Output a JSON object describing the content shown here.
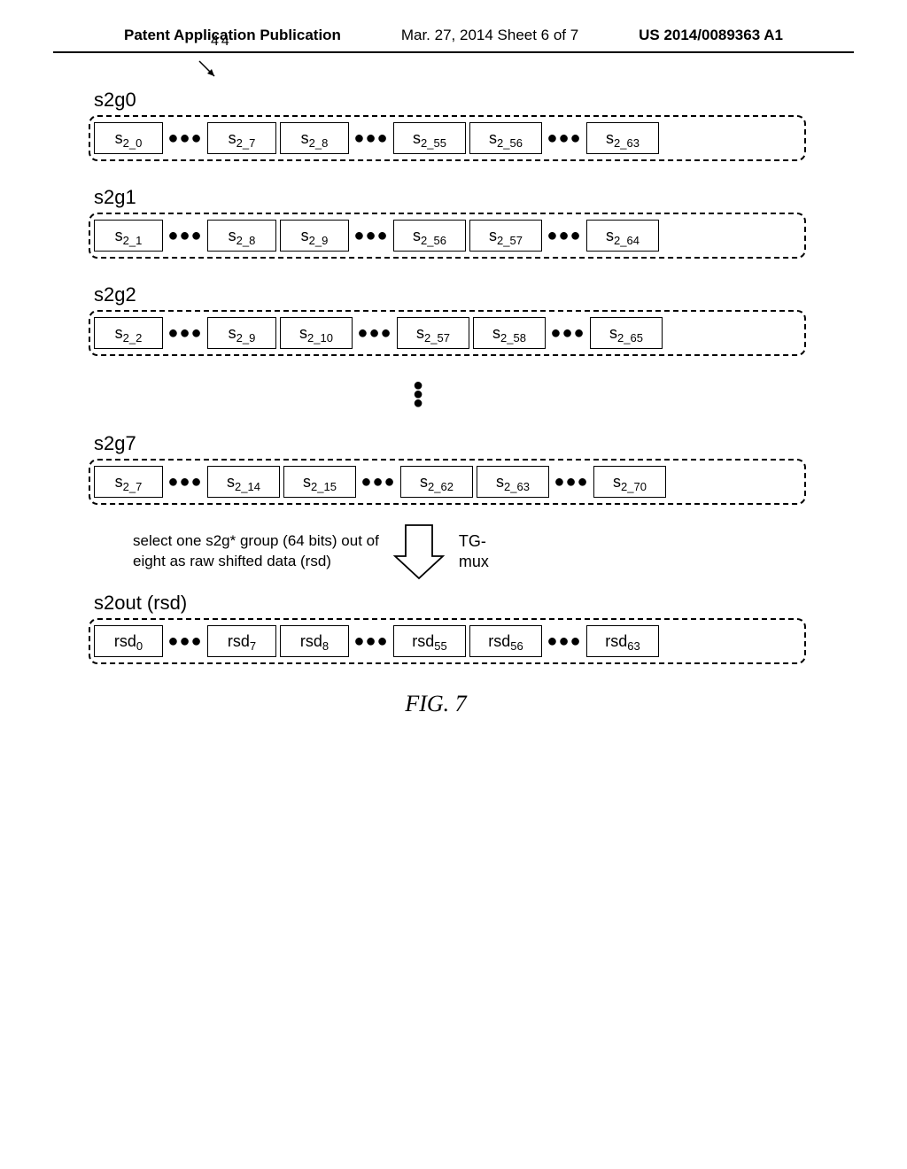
{
  "header": {
    "left": "Patent Application Publication",
    "mid": "Mar. 27, 2014  Sheet 6 of 7",
    "right": "US 2014/0089363 A1"
  },
  "ref_number": "44",
  "groups": [
    {
      "label": "s2g0",
      "cells": [
        {
          "prefix": "s",
          "sub": "2_0",
          "w": "w1"
        },
        {
          "dots": "●●●"
        },
        {
          "prefix": "s",
          "sub": "2_7",
          "w": "w1"
        },
        {
          "prefix": "s",
          "sub": "2_8",
          "w": "w1"
        },
        {
          "dots": "●●●"
        },
        {
          "prefix": "s",
          "sub": "2_55",
          "w": "w2"
        },
        {
          "prefix": "s",
          "sub": "2_56",
          "w": "w2"
        },
        {
          "dots": "●●●"
        },
        {
          "prefix": "s",
          "sub": "2_63",
          "w": "w2"
        }
      ]
    },
    {
      "label": "s2g1",
      "cells": [
        {
          "prefix": "s",
          "sub": "2_1",
          "w": "w1"
        },
        {
          "dots": "●●●"
        },
        {
          "prefix": "s",
          "sub": "2_8",
          "w": "w1"
        },
        {
          "prefix": "s",
          "sub": "2_9",
          "w": "w1"
        },
        {
          "dots": "●●●"
        },
        {
          "prefix": "s",
          "sub": "2_56",
          "w": "w2"
        },
        {
          "prefix": "s",
          "sub": "2_57",
          "w": "w2"
        },
        {
          "dots": "●●●"
        },
        {
          "prefix": "s",
          "sub": "2_64",
          "w": "w2"
        }
      ]
    },
    {
      "label": "s2g2",
      "cells": [
        {
          "prefix": "s",
          "sub": "2_2",
          "w": "w1"
        },
        {
          "dots": "●●●"
        },
        {
          "prefix": "s",
          "sub": "2_9",
          "w": "w1"
        },
        {
          "prefix": "s",
          "sub": "2_10",
          "w": "w2"
        },
        {
          "dots": "●●●"
        },
        {
          "prefix": "s",
          "sub": "2_57",
          "w": "w2"
        },
        {
          "prefix": "s",
          "sub": "2_58",
          "w": "w2"
        },
        {
          "dots": "●●●"
        },
        {
          "prefix": "s",
          "sub": "2_65",
          "w": "w2"
        }
      ]
    }
  ],
  "group7": {
    "label": "s2g7",
    "cells": [
      {
        "prefix": "s",
        "sub": "2_7",
        "w": "w1"
      },
      {
        "dots": "●●●"
      },
      {
        "prefix": "s",
        "sub": "2_14",
        "w": "w2"
      },
      {
        "prefix": "s",
        "sub": "2_15",
        "w": "w2"
      },
      {
        "dots": "●●●"
      },
      {
        "prefix": "s",
        "sub": "2_62",
        "w": "w2"
      },
      {
        "prefix": "s",
        "sub": "2_63",
        "w": "w2"
      },
      {
        "dots": "●●●"
      },
      {
        "prefix": "s",
        "sub": "2_70",
        "w": "w2"
      }
    ]
  },
  "arrow_text_1": "select one s2g* group (64 bits) out of",
  "arrow_text_2": "eight as raw shifted data (rsd)",
  "tg_label_1": "TG-",
  "tg_label_2": "mux",
  "output": {
    "label": "s2out (rsd)",
    "cells": [
      {
        "prefix": "rsd",
        "sub": "0",
        "w": "w1"
      },
      {
        "dots": "●●●"
      },
      {
        "prefix": "rsd",
        "sub": "7",
        "w": "w1"
      },
      {
        "prefix": "rsd",
        "sub": "8",
        "w": "w1"
      },
      {
        "dots": "●●●"
      },
      {
        "prefix": "rsd",
        "sub": "55",
        "w": "w2"
      },
      {
        "prefix": "rsd",
        "sub": "56",
        "w": "w2"
      },
      {
        "dots": "●●●"
      },
      {
        "prefix": "rsd",
        "sub": "63",
        "w": "w2"
      }
    ]
  },
  "figure_caption": "FIG. 7"
}
